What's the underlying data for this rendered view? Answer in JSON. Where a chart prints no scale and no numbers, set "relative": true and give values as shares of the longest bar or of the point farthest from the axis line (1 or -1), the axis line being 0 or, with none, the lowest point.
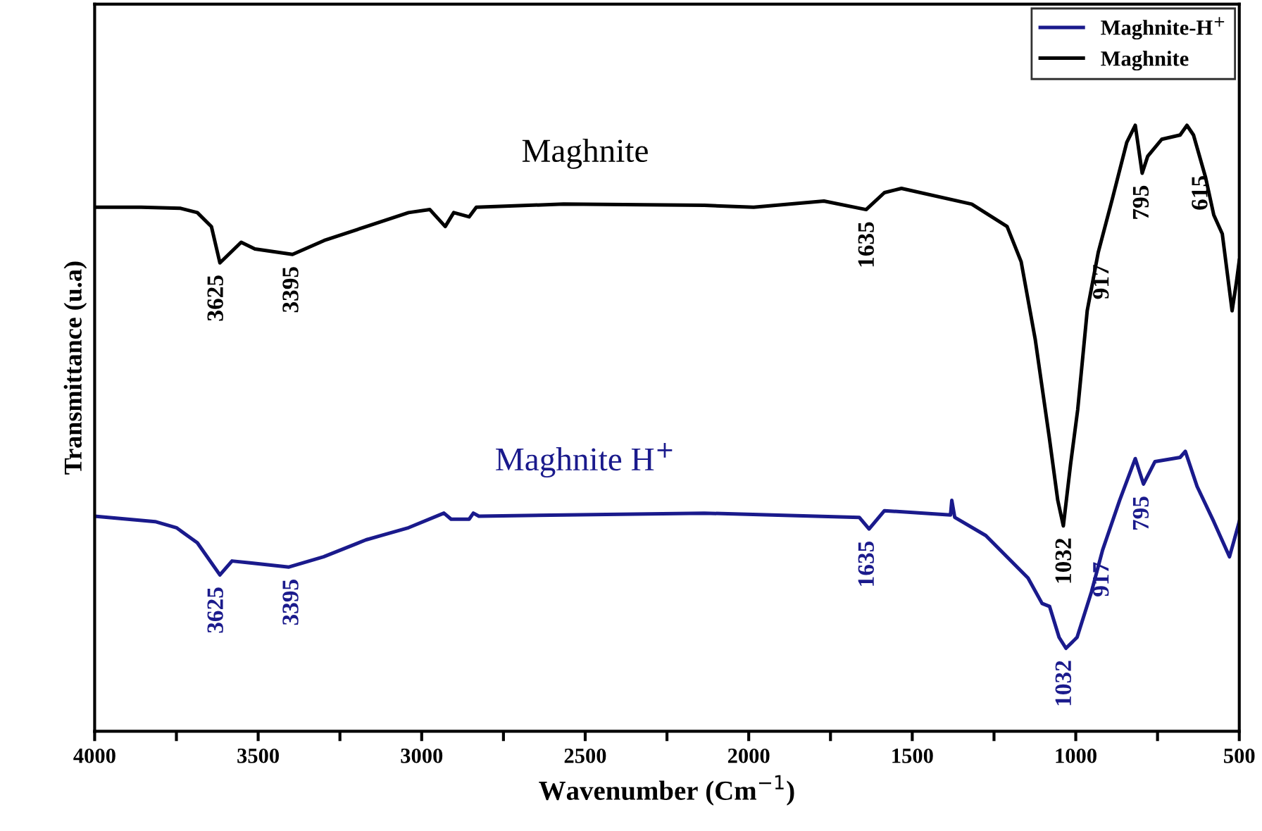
{
  "chart_data": {
    "type": "line",
    "relative": true,
    "xlabel": "Wavenumber (Cm$^{−1}$)",
    "ylabel": "Transmittance (u.a)",
    "xlim": [
      4000,
      500
    ],
    "xticks": [
      4000,
      {
        "value": 3750,
        "label": null
      },
      3500,
      {
        "value": 3250,
        "label": null
      },
      3000,
      {
        "value": 2750,
        "label": null
      },
      2500,
      {
        "value": 2250,
        "label": null
      },
      2000,
      {
        "value": 1750,
        "label": null
      },
      1500,
      {
        "value": 1250,
        "label": null
      },
      1000,
      {
        "value": 750,
        "label": null
      },
      500
    ],
    "tick_labels": "x",
    "grid": false,
    "legend": "top right",
    "marker": "none",
    "line_style": "solid",
    "series": [
      {
        "name": "Maghnite-H$^{+}$",
        "color": "#1a1a8c",
        "x": [
          4000,
          3815,
          3750,
          3686,
          3617,
          3580,
          3525,
          3406,
          3300,
          3170,
          3040,
          2932,
          2910,
          2855,
          2842,
          2825,
          2136,
          1662,
          1632,
          1585,
          1383,
          1379,
          1370,
          1275,
          1146,
          1103,
          1080,
          1051,
          1030,
          996,
          952,
          918,
          866,
          818,
          793,
          758,
          681,
          665,
          629,
          578,
          530,
          518,
          500
        ],
        "values": [
          0.355,
          0.346,
          0.336,
          0.311,
          0.258,
          0.281,
          0.278,
          0.271,
          0.288,
          0.316,
          0.336,
          0.36,
          0.35,
          0.35,
          0.36,
          0.355,
          0.36,
          0.353,
          0.334,
          0.364,
          0.357,
          0.381,
          0.353,
          0.323,
          0.253,
          0.211,
          0.206,
          0.155,
          0.137,
          0.155,
          0.23,
          0.299,
          0.381,
          0.45,
          0.408,
          0.445,
          0.452,
          0.462,
          0.404,
          0.346,
          0.288,
          0.311,
          0.346
        ]
      },
      {
        "name": "Maghnite",
        "color": "#000000",
        "x": [
          4000,
          3858,
          3737,
          3686,
          3643,
          3617,
          3552,
          3510,
          3395,
          3298,
          3169,
          3040,
          2975,
          2928,
          2902,
          2855,
          2833,
          2566,
          2136,
          1985,
          1770,
          1641,
          1585,
          1533,
          1318,
          1210,
          1167,
          1124,
          1081,
          1055,
          1038,
          1016,
          994,
          965,
          931,
          888,
          844,
          818,
          797,
          780,
          737,
          681,
          660,
          640,
          603,
          578,
          552,
          522,
          509,
          500
        ],
        "values": [
          0.865,
          0.865,
          0.863,
          0.856,
          0.833,
          0.773,
          0.807,
          0.796,
          0.787,
          0.81,
          0.833,
          0.856,
          0.861,
          0.833,
          0.856,
          0.849,
          0.865,
          0.87,
          0.868,
          0.865,
          0.875,
          0.861,
          0.889,
          0.896,
          0.87,
          0.833,
          0.775,
          0.647,
          0.485,
          0.381,
          0.339,
          0.44,
          0.531,
          0.694,
          0.791,
          0.879,
          0.972,
          1,
          0.921,
          0.949,
          0.977,
          0.984,
          1,
          0.984,
          0.914,
          0.852,
          0.821,
          0.694,
          0.74,
          0.777
        ]
      }
    ],
    "annotations": [
      {
        "text": "Maghnite",
        "x": 2500,
        "y": 0.87
      },
      {
        "text": "Maghnite H$^{+}$",
        "x": 2500,
        "y": 0.36
      },
      {
        "text": "3625",
        "x": 3625,
        "y": 0.773
      },
      {
        "text": "3395",
        "x": 3395,
        "y": 0.787
      },
      {
        "text": "1635",
        "x": 1635,
        "y": 0.861
      },
      {
        "text": "1032",
        "x": 1032,
        "y": 0.339
      },
      {
        "text": "917",
        "x": 917,
        "y": 0.79
      },
      {
        "text": "795",
        "x": 795,
        "y": 0.921
      },
      {
        "text": "615",
        "x": 615,
        "y": 0.937
      },
      {
        "text": "3625",
        "x": 3625,
        "y": 0.258
      },
      {
        "text": "3395",
        "x": 3395,
        "y": 0.271
      },
      {
        "text": "1635",
        "x": 1635,
        "y": 0.334
      },
      {
        "text": "1032",
        "x": 1032,
        "y": 0.137
      },
      {
        "text": "917",
        "x": 917,
        "y": 0.299
      },
      {
        "text": "795",
        "x": 795,
        "y": 0.408
      }
    ]
  }
}
